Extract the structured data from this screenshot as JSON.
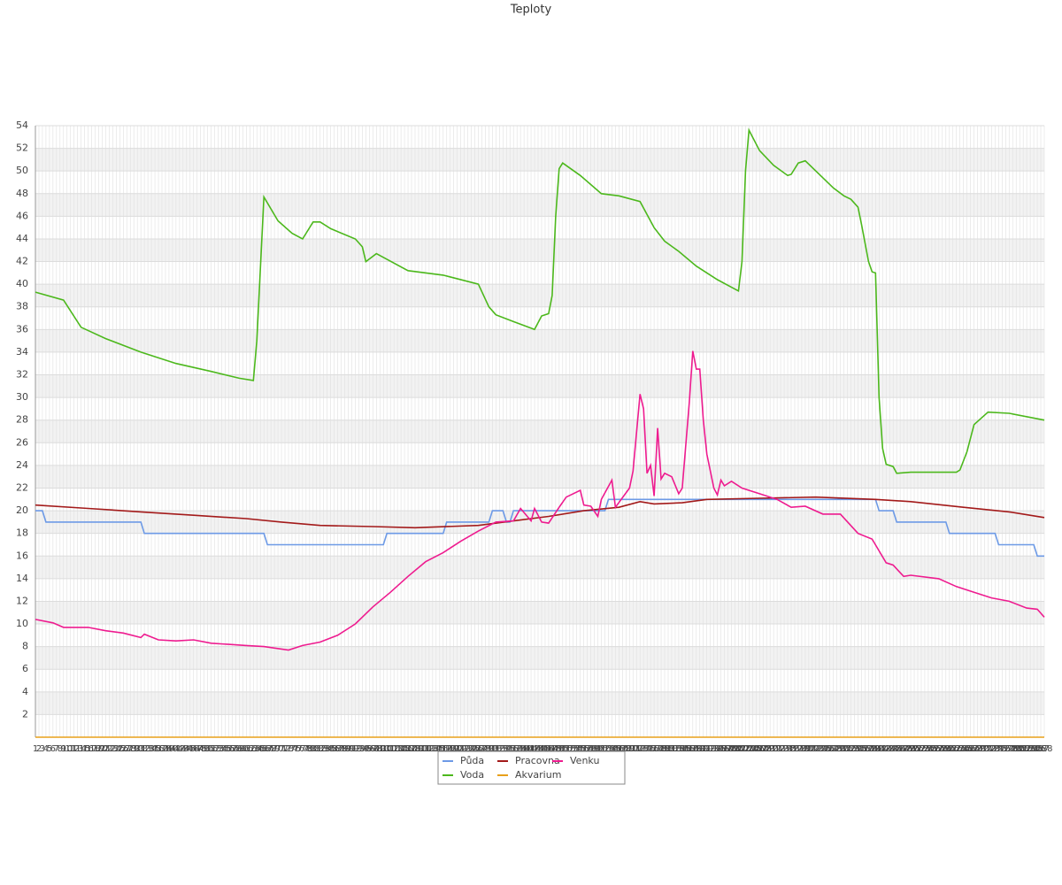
{
  "chart_data": {
    "type": "line",
    "title": "Teploty",
    "xlim": [
      1,
      288
    ],
    "ylim": [
      0,
      54
    ],
    "yticks": [
      2,
      4,
      6,
      8,
      10,
      12,
      14,
      16,
      18,
      20,
      22,
      24,
      26,
      28,
      30,
      32,
      34,
      36,
      38,
      40,
      42,
      44,
      46,
      48,
      50,
      52,
      54
    ],
    "xticks": [
      1,
      2,
      3,
      4,
      5,
      6,
      7,
      8,
      9,
      10,
      11,
      12,
      13,
      14,
      15,
      16,
      17,
      18,
      19,
      20,
      21,
      22,
      23,
      24,
      25,
      26,
      27,
      28,
      29,
      30,
      31,
      32,
      33,
      34,
      35,
      36,
      37,
      38,
      39,
      40,
      41,
      42,
      43,
      44,
      45,
      46,
      47,
      48,
      49,
      50,
      51,
      52,
      53,
      54,
      55,
      56,
      57,
      58,
      59,
      60,
      61,
      62,
      63,
      64,
      65,
      66,
      67,
      68,
      69,
      70,
      71,
      72,
      73,
      74,
      75,
      76,
      77,
      78,
      79,
      80,
      81,
      82,
      83,
      84,
      85,
      86,
      87,
      88,
      89,
      90,
      91,
      92,
      93,
      94,
      95,
      96,
      97,
      98,
      99,
      100,
      101,
      102,
      103,
      104,
      105,
      106,
      107,
      108,
      109,
      110,
      111,
      112,
      113,
      114,
      115,
      116,
      117,
      118,
      119,
      120,
      121,
      122,
      123,
      124,
      125,
      126,
      127,
      128,
      129,
      130,
      131,
      132,
      133,
      134,
      135,
      136,
      137,
      138,
      139,
      140,
      141,
      142,
      143,
      144,
      145,
      146,
      147,
      148,
      149,
      150,
      151,
      152,
      153,
      154,
      155,
      156,
      157,
      158,
      159,
      160,
      161,
      162,
      163,
      164,
      165,
      166,
      167,
      168,
      169,
      170,
      171,
      172,
      173,
      174,
      175,
      176,
      177,
      178,
      179,
      180,
      181,
      182,
      183,
      184,
      185,
      186,
      187,
      188,
      189,
      190,
      191,
      192,
      193,
      194,
      195,
      196,
      197,
      198,
      199,
      200,
      201,
      202,
      203,
      204,
      205,
      206,
      207,
      208,
      209,
      210,
      211,
      212,
      213,
      214,
      215,
      216,
      217,
      218,
      219,
      220,
      221,
      222,
      223,
      224,
      225,
      226,
      227,
      228,
      229,
      230,
      231,
      232,
      233,
      234,
      235,
      236,
      237,
      238,
      239,
      240,
      241,
      242,
      243,
      244,
      245,
      246,
      247,
      248,
      249,
      250,
      251,
      252,
      253,
      254,
      255,
      256,
      257,
      258,
      259,
      260,
      261,
      262,
      263,
      264,
      265,
      266,
      267,
      268,
      269,
      270,
      271,
      272,
      273,
      274,
      275,
      276,
      277,
      278,
      279,
      280,
      281,
      282,
      283,
      284,
      285,
      286,
      287,
      288
    ],
    "grid": true,
    "series": [
      {
        "name": "Půda",
        "color": "#6d9ae6",
        "x": [
          1,
          3,
          4,
          31,
          32,
          66,
          67,
          100,
          101,
          117,
          118,
          130,
          131,
          134,
          135,
          136,
          137,
          163,
          164,
          240,
          241,
          245,
          246,
          260,
          261,
          274,
          275,
          285,
          286,
          288
        ],
        "values": [
          20,
          20,
          19,
          19,
          18,
          18,
          17,
          17,
          18,
          18,
          19,
          19,
          20,
          20,
          19,
          19,
          20,
          20,
          21,
          21,
          20,
          20,
          19,
          19,
          18,
          18,
          17,
          17,
          16,
          16
        ]
      },
      {
        "name": "Pracovna",
        "color": "#a31a1a",
        "x": [
          1,
          16,
          31,
          46,
          61,
          71,
          82,
          97,
          109,
          127,
          137,
          147,
          157,
          167,
          173,
          177,
          185,
          192,
          207,
          223,
          240,
          250,
          265,
          278,
          288
        ],
        "values": [
          20.5,
          20.2,
          19.9,
          19.6,
          19.3,
          19.0,
          18.7,
          18.6,
          18.5,
          18.7,
          19.1,
          19.5,
          20.0,
          20.3,
          20.8,
          20.6,
          20.7,
          21.0,
          21.1,
          21.2,
          21.0,
          20.8,
          20.3,
          19.9,
          19.4
        ]
      },
      {
        "name": "Venku",
        "color": "#ee1b8f",
        "x": [
          1,
          6,
          9,
          16,
          21,
          26,
          31,
          32,
          36,
          41,
          46,
          51,
          56,
          61,
          66,
          73,
          77,
          82,
          87,
          92,
          97,
          102,
          107,
          112,
          117,
          122,
          127,
          132,
          137,
          139,
          142,
          143,
          145,
          147,
          150,
          152,
          156,
          157,
          159,
          161,
          162,
          165,
          166,
          170,
          171,
          173,
          174,
          175,
          176,
          177,
          178,
          179,
          180,
          182,
          184,
          185,
          187,
          188,
          189,
          190,
          191,
          192,
          194,
          195,
          196,
          197,
          199,
          202,
          207,
          212,
          216,
          220,
          225,
          230,
          235,
          239,
          243,
          245,
          248,
          250,
          258,
          263,
          268,
          273,
          278,
          283,
          286,
          288
        ],
        "values": [
          10.4,
          10.1,
          9.7,
          9.7,
          9.4,
          9.2,
          8.8,
          9.1,
          8.6,
          8.5,
          8.6,
          8.3,
          8.2,
          8.1,
          8.0,
          7.7,
          8.1,
          8.4,
          9.0,
          10.0,
          11.5,
          12.8,
          14.2,
          15.5,
          16.3,
          17.3,
          18.2,
          19.0,
          19.1,
          20.2,
          19.1,
          20.2,
          19.0,
          18.9,
          20.3,
          21.2,
          21.8,
          20.5,
          20.4,
          19.5,
          21.0,
          22.7,
          20.3,
          22.0,
          23.5,
          30.3,
          29.0,
          23.3,
          24.0,
          21.3,
          27.3,
          22.8,
          23.3,
          23.0,
          21.5,
          22.0,
          29.5,
          34.1,
          32.5,
          32.5,
          28.0,
          25.0,
          22.0,
          21.4,
          22.7,
          22.2,
          22.6,
          22.0,
          21.5,
          21.0,
          20.3,
          20.4,
          19.7,
          19.7,
          18.0,
          17.5,
          15.4,
          15.2,
          14.2,
          14.3,
          14.0,
          13.3,
          12.8,
          12.3,
          12.0,
          11.4,
          11.3,
          10.6
        ]
      },
      {
        "name": "Voda",
        "color": "#4cb81c",
        "x": [
          1,
          9,
          14,
          21,
          31,
          41,
          51,
          59,
          63,
          64,
          66,
          70,
          74,
          77,
          80,
          82,
          85,
          92,
          94,
          95,
          98,
          107,
          117,
          127,
          130,
          132,
          137,
          143,
          145,
          147,
          148,
          149,
          150,
          151,
          156,
          162,
          167,
          173,
          177,
          180,
          184,
          189,
          195,
          201,
          202,
          203,
          204,
          207,
          211,
          215,
          216,
          218,
          220,
          228,
          231,
          233,
          235,
          236,
          238,
          239,
          240,
          241,
          242,
          243,
          245,
          246,
          250,
          263,
          264,
          266,
          268,
          272,
          278,
          288
        ],
        "values": [
          39.3,
          38.6,
          36.2,
          35.2,
          34.0,
          33.0,
          32.3,
          31.7,
          31.5,
          35.0,
          47.7,
          45.6,
          44.5,
          44.0,
          45.5,
          45.5,
          44.9,
          44.0,
          43.3,
          42.0,
          42.7,
          41.2,
          40.8,
          40.0,
          38.0,
          37.3,
          36.7,
          36.0,
          37.2,
          37.4,
          39.0,
          46.0,
          50.2,
          50.7,
          49.6,
          48.0,
          47.8,
          47.3,
          45.0,
          43.8,
          42.9,
          41.6,
          40.4,
          39.4,
          42.0,
          50.0,
          53.6,
          51.8,
          50.5,
          49.6,
          49.7,
          50.7,
          50.9,
          48.5,
          47.8,
          47.5,
          46.8,
          45.3,
          42.0,
          41.1,
          41.0,
          30.0,
          25.5,
          24.1,
          23.9,
          23.3,
          23.4,
          23.4,
          23.6,
          25.2,
          27.6,
          28.7,
          28.6,
          28.0
        ]
      },
      {
        "name": "Akvarium",
        "color": "#e8a01a",
        "x": [
          1,
          288
        ],
        "values": [
          0,
          0
        ]
      }
    ]
  }
}
